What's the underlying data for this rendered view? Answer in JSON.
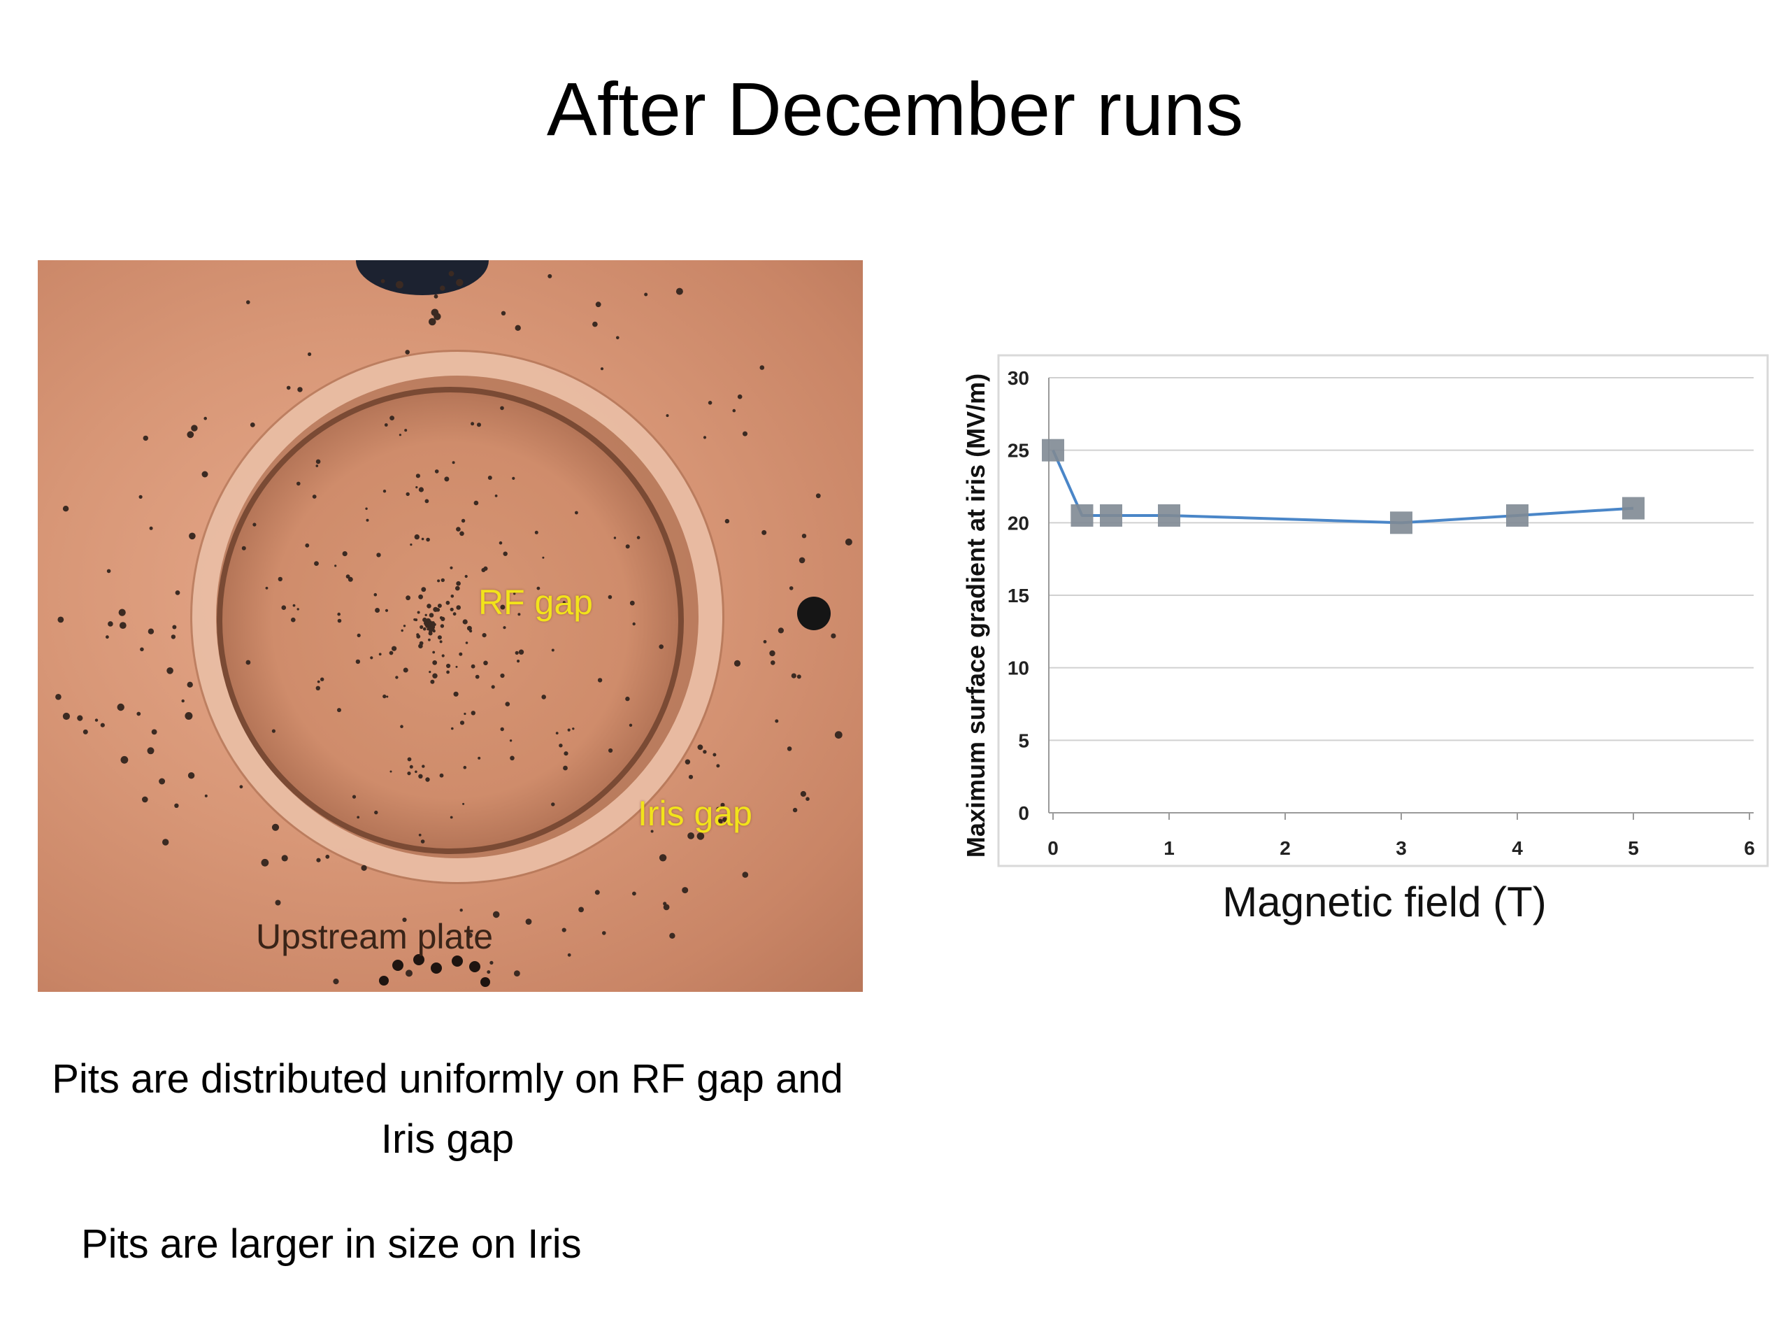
{
  "slide": {
    "title": "After December runs",
    "captions": [
      "Pits are distributed uniformly on RF gap and Iris gap",
      "Pits are larger in size on Iris"
    ]
  },
  "photo": {
    "labels": {
      "rf_gap": "RF gap",
      "iris_gap": "Iris gap",
      "upstream_plate": "Upstream plate"
    },
    "colors": {
      "copper": "#d89777",
      "label_yellow": "#f2e31b"
    }
  },
  "chart_data": {
    "type": "line",
    "title": "",
    "xlabel": "Magnetic field (T)",
    "ylabel": "Maximum surface gradient at iris (MV/m)",
    "xlim": [
      0,
      6
    ],
    "ylim": [
      0,
      30
    ],
    "x_ticks": [
      0,
      1,
      2,
      3,
      4,
      5,
      6
    ],
    "y_ticks": [
      0,
      5,
      10,
      15,
      20,
      25,
      30
    ],
    "grid": true,
    "legend": "none",
    "series": [
      {
        "x": [
          0,
          0.25,
          0.5,
          1,
          3,
          4,
          5
        ],
        "y": [
          25,
          20.5,
          20.5,
          20.5,
          20,
          20.5,
          21
        ],
        "marker": "square",
        "marker_color": "#7f8a94",
        "line_color": "#4a86c8"
      }
    ]
  }
}
